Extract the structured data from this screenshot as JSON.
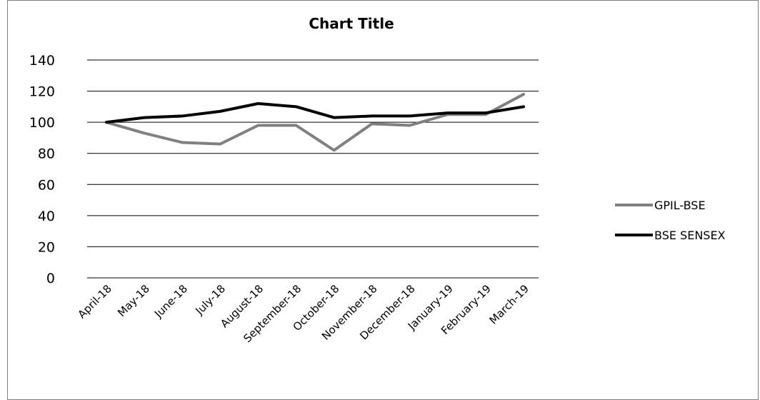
{
  "chart_data": {
    "type": "line",
    "title": "Chart Title",
    "categories": [
      "April-18",
      "May-18",
      "June-18",
      "July-18",
      "August-18",
      "September-18",
      "October-18",
      "November-18",
      "December-18",
      "January-19",
      "February-19",
      "March-19"
    ],
    "series": [
      {
        "name": "GPIL-BSE",
        "color": "#808080",
        "values": [
          100,
          93,
          87,
          86,
          98,
          98,
          82,
          99,
          98,
          105,
          105,
          118
        ]
      },
      {
        "name": "BSE SENSEX",
        "color": "#000000",
        "values": [
          100,
          103,
          104,
          107,
          112,
          110,
          103,
          104,
          104,
          106,
          106,
          110
        ]
      }
    ],
    "ylim": [
      0,
      140
    ],
    "yticks": [
      0,
      20,
      40,
      60,
      80,
      100,
      120,
      140
    ],
    "grid": true,
    "legend_position": "right"
  }
}
